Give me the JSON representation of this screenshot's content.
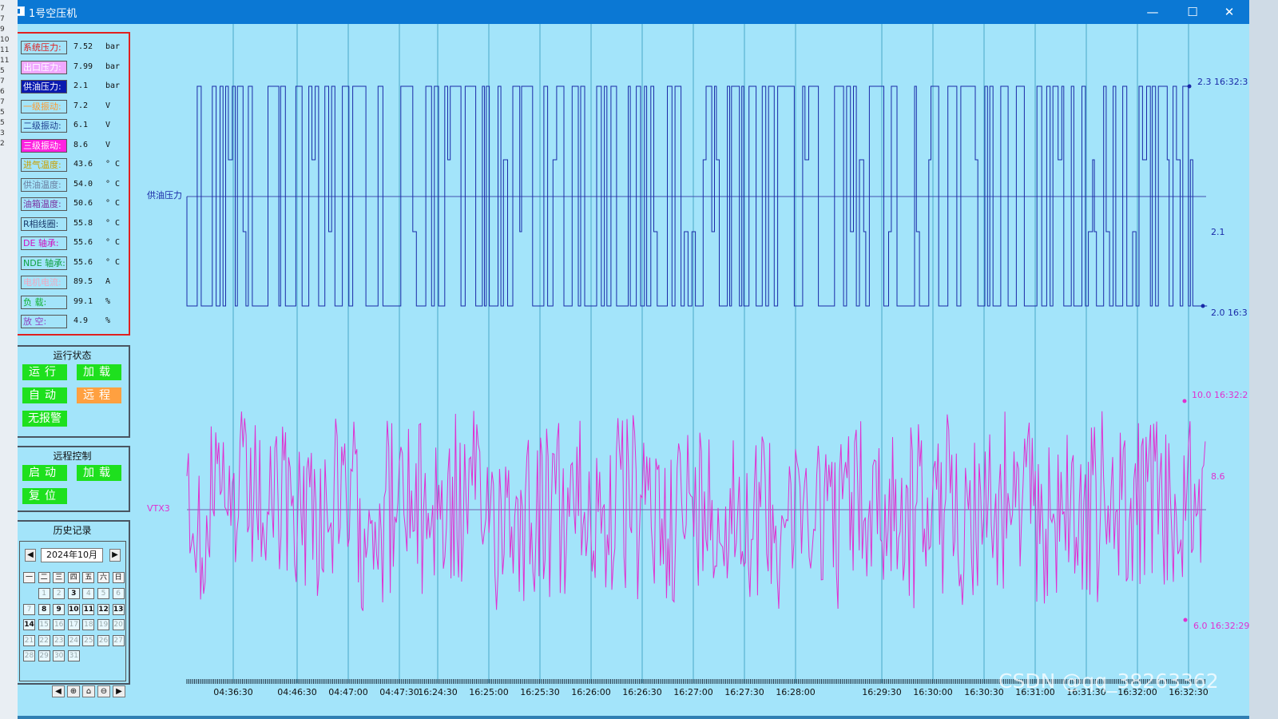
{
  "window": {
    "title": "1号空压机",
    "min_glyph": "—",
    "max_glyph": "☐",
    "close_glyph": "✕"
  },
  "left_strip": [
    "7",
    "7",
    "9",
    "10",
    "11",
    "11",
    "5",
    "7",
    "6",
    "7",
    "5",
    "5",
    "3",
    "2"
  ],
  "sensors": [
    {
      "label": "系统压力:",
      "value": "7.52",
      "unit": "bar",
      "color": "#e0201f",
      "bg": "#a3e4fa"
    },
    {
      "label": "出口压力:",
      "value": "7.99",
      "unit": "bar",
      "color": "#ffffff",
      "bg": "#f0a8ff"
    },
    {
      "label": "供油压力:",
      "value": "2.1",
      "unit": "bar",
      "color": "#ffffff",
      "bg": "#0a1ab0"
    },
    {
      "label": "一级振动:",
      "value": "7.2",
      "unit": "V",
      "color": "#ff9a30",
      "bg": "#a3e4fa"
    },
    {
      "label": "二级振动:",
      "value": "6.1",
      "unit": "V",
      "color": "#1f3f8f",
      "bg": "#a3e4fa"
    },
    {
      "label": "三级振动:",
      "value": "8.6",
      "unit": "V",
      "color": "#ffffff",
      "bg": "#ff20e0"
    },
    {
      "label": "进气温度:",
      "value": "43.6",
      "unit": "° C",
      "color": "#c8a000",
      "bg": "#a3e4fa"
    },
    {
      "label": "供油温度:",
      "value": "54.0",
      "unit": "° C",
      "color": "#6a7fa0",
      "bg": "#a3e4fa"
    },
    {
      "label": "油箱温度:",
      "value": "50.6",
      "unit": "° C",
      "color": "#7a2fa0",
      "bg": "#a3e4fa"
    },
    {
      "label": "R相线圈:",
      "value": "55.8",
      "unit": "° C",
      "color": "#1a3a6a",
      "bg": "#a3e4fa"
    },
    {
      "label": "DE  轴承:",
      "value": "55.6",
      "unit": "° C",
      "color": "#d010c0",
      "bg": "#a3e4fa"
    },
    {
      "label": "NDE 轴承:",
      "value": "55.6",
      "unit": "° C",
      "color": "#10a040",
      "bg": "#a3e4fa"
    },
    {
      "label": "电机电流:",
      "value": "89.5",
      "unit": "A",
      "color": "#f0a8c0",
      "bg": "#a3e4fa"
    },
    {
      "label": "负   载:",
      "value": "99.1",
      "unit": "%",
      "color": "#10b030",
      "bg": "#a3e4fa"
    },
    {
      "label": "放   空:",
      "value": "4.9",
      "unit": "%",
      "color": "#9040c0",
      "bg": "#a3e4fa"
    }
  ],
  "status": {
    "title": "运行状态",
    "buttons": [
      {
        "label": "运行",
        "color": "green"
      },
      {
        "label": "加载",
        "color": "green"
      },
      {
        "label": "自动",
        "color": "green"
      },
      {
        "label": "远程",
        "color": "orange"
      },
      {
        "label": "无报警",
        "color": "green"
      }
    ]
  },
  "remote": {
    "title": "远程控制",
    "buttons": [
      {
        "label": "启动",
        "color": "green"
      },
      {
        "label": "加载",
        "color": "green"
      },
      {
        "label": "复位",
        "color": "green"
      }
    ]
  },
  "history": {
    "title": "历史记录",
    "month": "2024年10月",
    "prev_glyph": "◀",
    "next_glyph": "▶",
    "weekdays": [
      "一",
      "二",
      "三",
      "四",
      "五",
      "六",
      "日"
    ],
    "days": [
      [
        "",
        "1",
        "2",
        "3",
        "4",
        "5",
        "6"
      ],
      [
        "7",
        "8",
        "9",
        "10",
        "11",
        "12",
        "13"
      ],
      [
        "14",
        "15",
        "16",
        "17",
        "18",
        "19",
        "20"
      ],
      [
        "21",
        "22",
        "23",
        "24",
        "25",
        "26",
        "27"
      ],
      [
        "28",
        "29",
        "30",
        "31",
        "",
        "",
        ""
      ]
    ],
    "bold_days": [
      "3",
      "8",
      "9",
      "10",
      "11",
      "12",
      "13",
      "14"
    ],
    "tools": [
      {
        "name": "prev-page-icon",
        "glyph": "◀"
      },
      {
        "name": "zoom-in-icon",
        "glyph": "⊕"
      },
      {
        "name": "home-icon",
        "glyph": "⌂"
      },
      {
        "name": "zoom-out-icon",
        "glyph": "⊖"
      },
      {
        "name": "next-page-icon",
        "glyph": "▶"
      }
    ]
  },
  "chart_data": [
    {
      "type": "line",
      "series": [
        {
          "name": "供油压力",
          "color": "#1a2aa8"
        }
      ],
      "value_range": [
        2.0,
        2.3
      ],
      "current_value": "2.1",
      "max_label": "2.3 16:32:3",
      "min_label": "2.0 16:3"
    },
    {
      "type": "line",
      "series": [
        {
          "name": "VTX3",
          "color": "#e030d0"
        }
      ],
      "value_range": [
        6.0,
        10.0
      ],
      "current_value": "8.6",
      "max_label": "10.0 16:32:2",
      "min_label": "6.0 16:32:29"
    }
  ],
  "x_ticks": [
    "04:36:30",
    "04:46:30",
    "04:47:00",
    "04:47:30",
    "16:24:30",
    "16:25:00",
    "16:25:30",
    "16:26:00",
    "16:26:30",
    "16:27:00",
    "16:27:30",
    "16:28:00",
    "16:29:30",
    "16:30:00",
    "16:30:30",
    "16:31:00",
    "16:31:30",
    "16:32:00",
    "16:32:30"
  ],
  "watermark": "CSDN @qq_38263362"
}
